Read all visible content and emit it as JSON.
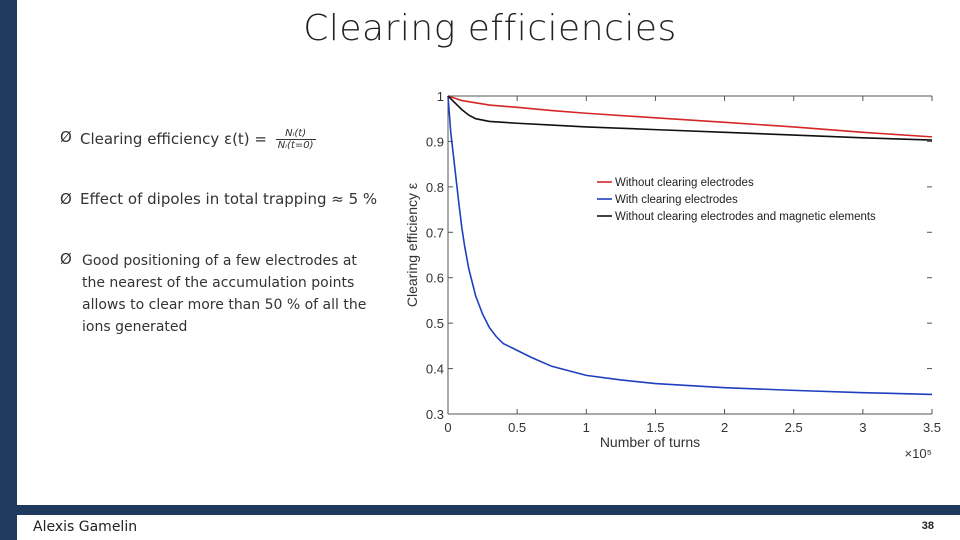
{
  "slide": {
    "title": "Clearing efficiencies",
    "bullets": [
      {
        "text": "Clearing efficiency ε(t) =",
        "fraction_numerator": "Nᵢ(t)",
        "fraction_denominator": "Nᵢ(t=0)"
      },
      {
        "text": "Effect of dipoles in total trapping ≈ 5 %"
      },
      {
        "text": "Good positioning of a few electrodes at the nearest of the accumulation points allows to clear more than 50 % of all the ions generated"
      }
    ],
    "bullet_marker": "Ø",
    "author": "Alexis Gamelin",
    "page_number": "38"
  },
  "colors": {
    "accent_bar": "#1f3a5f",
    "red": "#d62728",
    "blue": "#1f3fbf",
    "black": "#111111"
  },
  "chart_data": {
    "type": "line",
    "xlabel": "Number of turns",
    "ylabel": "Clearing efficiency ε",
    "x_multiplier_label": "×10⁵",
    "xlim": [
      0,
      3.5
    ],
    "ylim": [
      0.3,
      1.0
    ],
    "x_ticks": [
      0,
      0.5,
      1,
      1.5,
      2,
      2.5,
      3,
      3.5
    ],
    "x_tick_labels": [
      "0",
      "0.5",
      "1",
      "1.5",
      "2",
      "2.5",
      "3",
      "3.5"
    ],
    "y_ticks": [
      0.3,
      0.4,
      0.5,
      0.6,
      0.7,
      0.8,
      0.9,
      1.0
    ],
    "y_tick_labels": [
      "0.3",
      "0.4",
      "0.5",
      "0.6",
      "0.7",
      "0.8",
      "0.9",
      "1"
    ],
    "legend_position": "upper-right",
    "series": [
      {
        "name": "Without clearing electrodes",
        "color": "#d62728",
        "x": [
          0,
          0.05,
          0.1,
          0.2,
          0.3,
          0.5,
          0.75,
          1.0,
          1.5,
          2.0,
          2.5,
          3.0,
          3.5
        ],
        "y": [
          1.0,
          0.995,
          0.99,
          0.985,
          0.98,
          0.975,
          0.968,
          0.962,
          0.952,
          0.942,
          0.932,
          0.92,
          0.91
        ]
      },
      {
        "name": "With clearing electrodes",
        "color": "#1f3fbf",
        "x": [
          0,
          0.02,
          0.05,
          0.08,
          0.1,
          0.12,
          0.15,
          0.2,
          0.25,
          0.3,
          0.35,
          0.4,
          0.5,
          0.6,
          0.75,
          1.0,
          1.25,
          1.5,
          2.0,
          2.5,
          3.0,
          3.5
        ],
        "y": [
          1.0,
          0.92,
          0.84,
          0.76,
          0.71,
          0.67,
          0.62,
          0.56,
          0.52,
          0.49,
          0.47,
          0.455,
          0.44,
          0.425,
          0.405,
          0.385,
          0.375,
          0.367,
          0.358,
          0.352,
          0.347,
          0.343
        ]
      },
      {
        "name": "Without clearing electrodes and magnetic elements",
        "color": "#111111",
        "x": [
          0,
          0.05,
          0.1,
          0.15,
          0.2,
          0.3,
          0.4,
          0.5,
          0.75,
          1.0,
          1.5,
          2.0,
          2.5,
          3.0,
          3.5
        ],
        "y": [
          1.0,
          0.985,
          0.97,
          0.958,
          0.95,
          0.944,
          0.942,
          0.94,
          0.936,
          0.932,
          0.926,
          0.92,
          0.914,
          0.908,
          0.903
        ]
      }
    ]
  }
}
